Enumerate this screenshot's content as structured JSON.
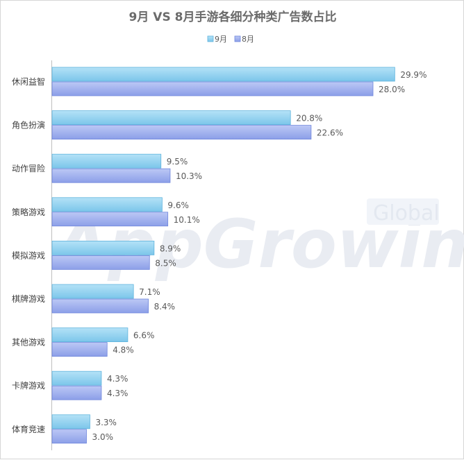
{
  "chart_data": {
    "type": "bar",
    "orientation": "horizontal",
    "title": "9月 VS 8月手游各细分种类广告数占比",
    "categories": [
      "休闲益智",
      "角色扮演",
      "动作冒险",
      "策略游戏",
      "模拟游戏",
      "棋牌游戏",
      "其他游戏",
      "卡牌游戏",
      "体育竞速"
    ],
    "series": [
      {
        "name": "9月",
        "values": [
          29.9,
          20.8,
          9.5,
          9.6,
          8.9,
          7.1,
          6.6,
          4.3,
          3.3
        ],
        "labels": [
          "29.9%",
          "20.8%",
          "9.5%",
          "9.6%",
          "8.9%",
          "7.1%",
          "6.6%",
          "4.3%",
          "3.3%"
        ],
        "color": "#8fd0ee"
      },
      {
        "name": "8月",
        "values": [
          28.0,
          22.6,
          10.3,
          10.1,
          8.5,
          8.4,
          4.8,
          4.3,
          3.0
        ],
        "labels": [
          "28.0%",
          "22.6%",
          "10.3%",
          "10.1%",
          "8.5%",
          "8.4%",
          "4.8%",
          "4.3%",
          "3.0%"
        ],
        "color": "#9fb0ee"
      }
    ],
    "xlim": [
      0,
      30
    ],
    "unit": "%",
    "legend": "top-center",
    "grid": false
  },
  "watermark": {
    "main": "AppGrowing",
    "badge": "Global"
  }
}
